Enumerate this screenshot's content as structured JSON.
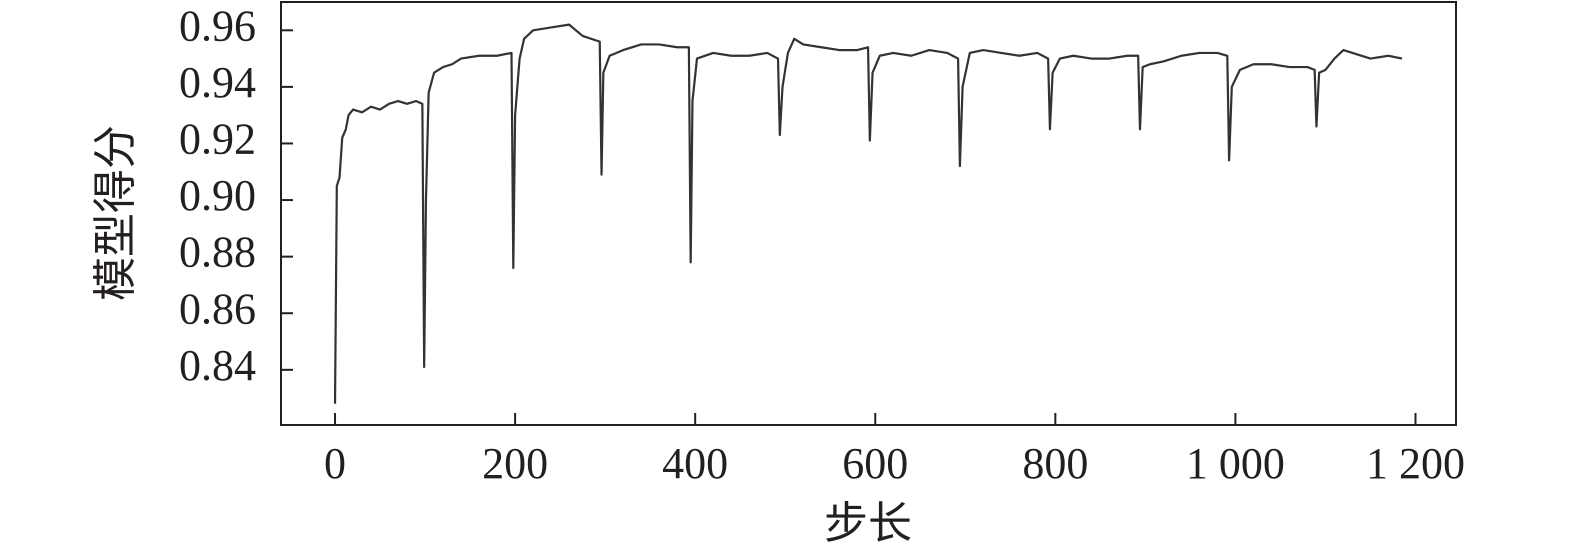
{
  "chart_data": {
    "type": "line",
    "xlabel": "步长",
    "ylabel": "模型得分",
    "color": "#333333",
    "x": [
      0,
      2,
      5,
      8,
      12,
      15,
      20,
      30,
      40,
      50,
      60,
      70,
      80,
      90,
      97,
      99,
      101,
      104,
      110,
      120,
      130,
      140,
      160,
      180,
      196,
      198,
      200,
      205,
      210,
      220,
      240,
      260,
      275,
      294,
      296,
      298,
      305,
      320,
      340,
      360,
      380,
      393,
      395,
      397,
      402,
      420,
      440,
      460,
      480,
      492,
      494,
      497,
      503,
      510,
      520,
      540,
      560,
      580,
      592,
      594,
      597,
      605,
      620,
      640,
      660,
      680,
      692,
      694,
      697,
      705,
      720,
      740,
      760,
      780,
      792,
      794,
      797,
      805,
      820,
      840,
      860,
      880,
      892,
      894,
      897,
      905,
      920,
      940,
      960,
      980,
      991,
      993,
      996,
      1005,
      1020,
      1040,
      1060,
      1080,
      1088,
      1090,
      1093,
      1100,
      1110,
      1120,
      1130,
      1150,
      1170,
      1185
    ],
    "values": [
      0.828,
      0.905,
      0.908,
      0.922,
      0.925,
      0.93,
      0.932,
      0.931,
      0.933,
      0.932,
      0.934,
      0.935,
      0.934,
      0.935,
      0.934,
      0.841,
      0.9,
      0.938,
      0.945,
      0.947,
      0.948,
      0.95,
      0.951,
      0.951,
      0.952,
      0.876,
      0.93,
      0.95,
      0.957,
      0.96,
      0.961,
      0.962,
      0.958,
      0.956,
      0.909,
      0.945,
      0.951,
      0.953,
      0.955,
      0.955,
      0.954,
      0.954,
      0.878,
      0.935,
      0.95,
      0.952,
      0.951,
      0.951,
      0.952,
      0.95,
      0.923,
      0.94,
      0.952,
      0.957,
      0.955,
      0.954,
      0.953,
      0.953,
      0.954,
      0.921,
      0.945,
      0.951,
      0.952,
      0.951,
      0.953,
      0.952,
      0.95,
      0.912,
      0.94,
      0.952,
      0.953,
      0.952,
      0.951,
      0.952,
      0.95,
      0.925,
      0.945,
      0.95,
      0.951,
      0.95,
      0.95,
      0.951,
      0.951,
      0.925,
      0.947,
      0.948,
      0.949,
      0.951,
      0.952,
      0.952,
      0.951,
      0.914,
      0.94,
      0.946,
      0.948,
      0.948,
      0.947,
      0.947,
      0.946,
      0.926,
      0.945,
      0.946,
      0.95,
      0.953,
      0.952,
      0.95,
      0.951,
      0.95
    ],
    "xlim": [
      -60,
      1245
    ],
    "ylim": [
      0.8205,
      0.97
    ],
    "xticks": [
      0,
      200,
      400,
      600,
      800,
      {
        "value": 1000,
        "label": "1 000"
      },
      {
        "value": 1200,
        "label": "1 200"
      }
    ],
    "yticks": [
      0.84,
      0.86,
      0.88,
      {
        "value": 0.9,
        "label": "0.90"
      },
      0.92,
      0.94,
      0.96
    ]
  }
}
